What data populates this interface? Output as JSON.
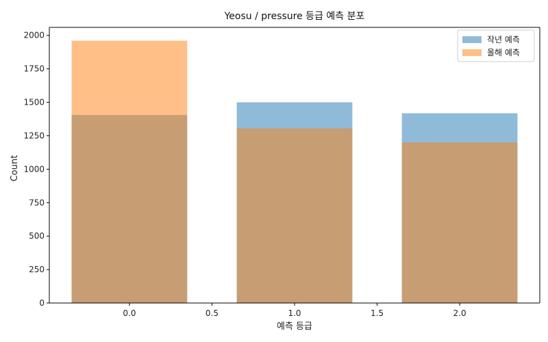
{
  "chart_data": {
    "type": "bar",
    "title": "Yeosu / pressure 등급 예측 분포",
    "xlabel": "예측 등급",
    "ylabel": "Count",
    "x": [
      0,
      1,
      2
    ],
    "bar_width": 0.7,
    "xlim": [
      -0.485,
      2.485
    ],
    "ylim": [
      0,
      2060
    ],
    "xticks": [
      0.0,
      0.5,
      1.0,
      1.5,
      2.0
    ],
    "xtick_labels": [
      "0.0",
      "0.5",
      "1.0",
      "1.5",
      "2.0"
    ],
    "yticks": [
      0,
      250,
      500,
      750,
      1000,
      1250,
      1500,
      1750,
      2000
    ],
    "ytick_labels": [
      "0",
      "250",
      "500",
      "750",
      "1000",
      "1250",
      "1500",
      "1750",
      "2000"
    ],
    "series": [
      {
        "name": "작년 예측",
        "values": [
          1405,
          1500,
          1418
        ],
        "color": "#1f77b4",
        "alpha": 0.5
      },
      {
        "name": "올해 예측",
        "values": [
          1960,
          1305,
          1200
        ],
        "color": "#ff7f0e",
        "alpha": 0.5
      }
    ],
    "legend_position": "top-right",
    "grid": false
  }
}
